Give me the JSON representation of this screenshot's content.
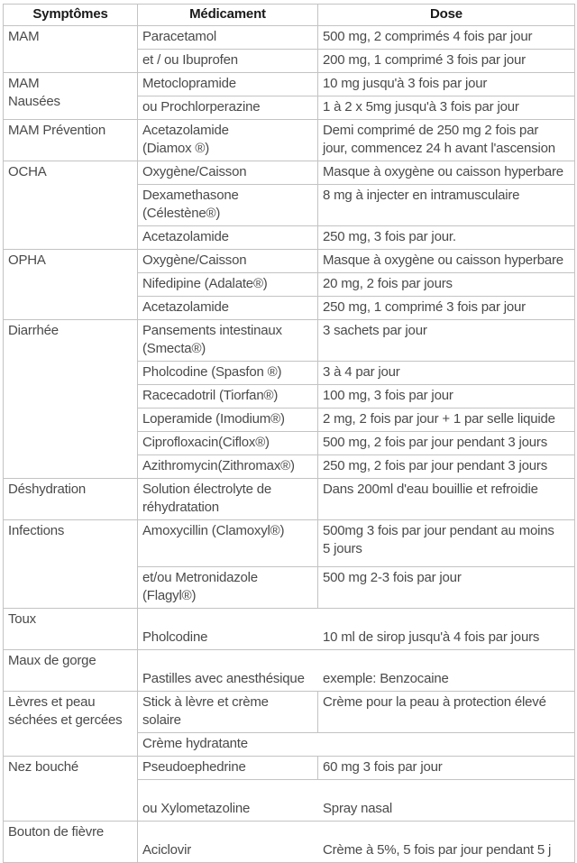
{
  "colors": {
    "border": "#c3c3c3",
    "body_text": "#4a4a4a",
    "header_text": "#1a1a1a",
    "background": "#ffffff"
  },
  "table": {
    "headers": [
      "Symptômes",
      "Médicament",
      "Dose"
    ],
    "rows": [
      {
        "sym": "MAM",
        "med": "Paracetamol",
        "dose": "500 mg, 2 comprimés 4 fois par jour"
      },
      {
        "med": "et / ou Ibuprofen",
        "dose": "200 mg, 1 comprimé 3 fois par jour"
      },
      {
        "sym": "MAM\nNausées",
        "med": "Metoclopramide",
        "dose": "10 mg jusqu'à 3 fois par jour"
      },
      {
        "med": "ou Prochlorperazine",
        "dose": "1 à 2 x 5mg jusqu'à 3 fois par jour"
      },
      {
        "sym": "MAM Prévention",
        "med": "Acetazolamide\n(Diamox ®)",
        "dose": "Demi comprimé de 250 mg 2 fois par\njour, commencez 24 h avant l'ascension"
      },
      {
        "sym": "OCHA",
        "med": "Oxygène/Caisson",
        "dose": "Masque à oxygène ou caisson hyperbare"
      },
      {
        "med": "Dexamethasone\n(Célestène®)",
        "dose": "8 mg à injecter en intramusculaire"
      },
      {
        "med": "Acetazolamide",
        "dose": "250 mg, 3 fois par jour."
      },
      {
        "sym": "OPHA",
        "med": "Oxygène/Caisson",
        "dose": "Masque à oxygène ou caisson hyperbare"
      },
      {
        "med": "Nifedipine (Adalate®)",
        "dose": "20 mg, 2 fois par jours"
      },
      {
        "med": "Acetazolamide",
        "dose": "250 mg, 1 comprimé 3 fois par jour"
      },
      {
        "sym": "Diarrhée",
        "med": "Pansements intestinaux\n(Smecta®)",
        "dose": "3 sachets par jour"
      },
      {
        "med": "Pholcodine (Spasfon ®)",
        "dose": "3 à 4 par jour"
      },
      {
        "med": "Racecadotril (Tiorfan®)",
        "dose": "100 mg, 3 fois par jour"
      },
      {
        "med": "Loperamide (Imodium®)",
        "dose": "2 mg, 2 fois par jour + 1 par selle liquide"
      },
      {
        "med": "Ciprofloxacin(Ciflox®)",
        "dose": "500 mg, 2 fois par jour pendant 3 jours"
      },
      {
        "med": "Azithromycin(Zithromax®)",
        "dose": "250 mg, 2 fois par jour pendant 3 jours"
      },
      {
        "sym": "Déshydration",
        "med": "Solution électrolyte de\nréhydratation",
        "dose": "Dans 200ml d'eau bouillie et refroidie"
      },
      {
        "sym": "Infections",
        "med": "Amoxycillin (Clamoxyl®)",
        "dose": "500mg 3 fois par jour pendant au moins\n5 jours"
      },
      {
        "med": "et/ou Metronidazole\n(Flagyl®)",
        "dose": "500 mg 2-3 fois par jour"
      },
      {
        "sym": "Toux",
        "med": "Pholcodine",
        "dose": "10 ml de sirop jusqu'à 4 fois par jours"
      },
      {
        "sym": "Maux de gorge",
        "med": "Pastilles avec anesthésique",
        "dose": "exemple: Benzocaine"
      },
      {
        "sym": "Lèvres et peau\nséchées et gercées",
        "med": "Stick à lèvre et crème\nsolaire",
        "dose": "Crème pour la peau à protection élevé"
      },
      {
        "med": "Crème hydratante"
      },
      {
        "sym": "Nez bouché",
        "med": "Pseudoephedrine",
        "dose": "60 mg 3 fois par jour"
      },
      {
        "med": "ou Xylometazoline",
        "dose": "Spray nasal"
      },
      {
        "sym": "Bouton de fièvre",
        "med": "Aciclovir",
        "dose": "Crème à 5%, 5 fois par jour pendant 5 j"
      }
    ]
  }
}
